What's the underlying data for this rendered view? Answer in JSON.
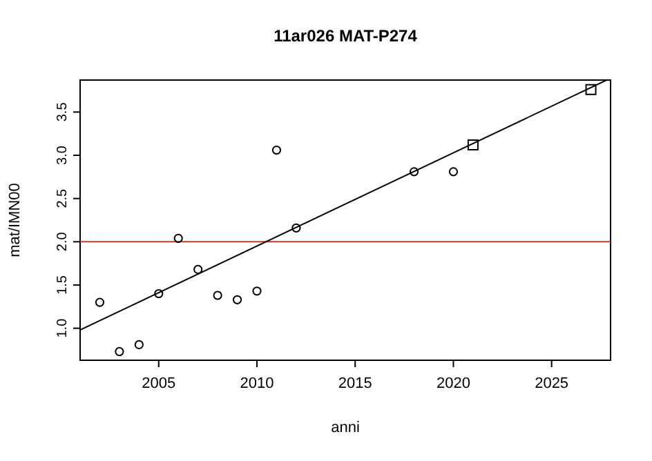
{
  "chart_data": {
    "type": "scatter",
    "title": "11ar026 MAT-P274",
    "xlabel": "anni",
    "ylabel": "mat/IMN00",
    "xlim": [
      2001,
      2028
    ],
    "xticks": [
      2005,
      2010,
      2015,
      2020,
      2025
    ],
    "ylim": [
      0.63,
      3.87
    ],
    "yticks": [
      {
        "value": 1,
        "label": "1.0"
      },
      {
        "value": 1.5,
        "label": "1.5"
      },
      {
        "value": 2,
        "label": "2.0"
      },
      {
        "value": 2.5,
        "label": "2.5"
      },
      {
        "value": 3,
        "label": "3.0"
      },
      {
        "value": 3.5,
        "label": "3.5"
      }
    ],
    "grid": false,
    "series": [
      {
        "type": "scatter",
        "marker": "circle",
        "color": "#000000",
        "x": [
          2002,
          2003,
          2004,
          2005,
          2006,
          2007,
          2008,
          2009,
          2010,
          2011,
          2012,
          2018,
          2020
        ],
        "values": [
          1.3,
          0.73,
          0.81,
          1.4,
          2.04,
          1.68,
          1.38,
          1.33,
          1.43,
          3.06,
          2.16,
          2.81,
          2.81
        ]
      },
      {
        "type": "scatter",
        "marker": "square",
        "color": "#000000",
        "x": [
          2021,
          2027
        ],
        "values": [
          3.12,
          3.76
        ]
      },
      {
        "type": "line",
        "marker": "none",
        "line_style": "solid",
        "color": "#000000",
        "x": [
          2001,
          2027.8
        ],
        "values": [
          0.98,
          3.87
        ]
      }
    ],
    "ref_lines": [
      {
        "axis": "y",
        "value": 2,
        "color": "#c0392b"
      }
    ]
  }
}
